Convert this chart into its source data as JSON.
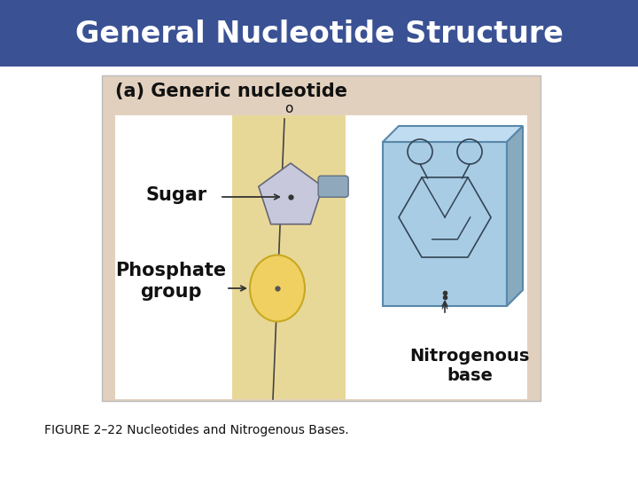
{
  "title": "General Nucleotide Structure",
  "title_bg": "#3A5294",
  "title_color": "#FFFFFF",
  "subtitle": "(a) Generic nucleotide",
  "caption": "FIGURE 2–22 Nucleotides and Nitrogenous Bases.",
  "bg_color": "#FFFFFF",
  "panel_bg": "#E2D0BE",
  "sugar_band_bg": "#E8D898",
  "sugar_color": "#C8C8DC",
  "nitro_front_bg": "#A8CCE4",
  "nitro_top_bg": "#C0DCF0",
  "nitro_right_bg": "#88AABF",
  "nitro_border": "#5888AA",
  "phosphate_color": "#F0D060",
  "phosphate_border": "#C8A820",
  "connector_color": "#90A8BC",
  "line_color": "#444444",
  "label_sugar": "Sugar",
  "label_phosphate": "Phosphate\ngroup",
  "label_nitro": "Nitrogenous\nbase",
  "label_o": "o"
}
